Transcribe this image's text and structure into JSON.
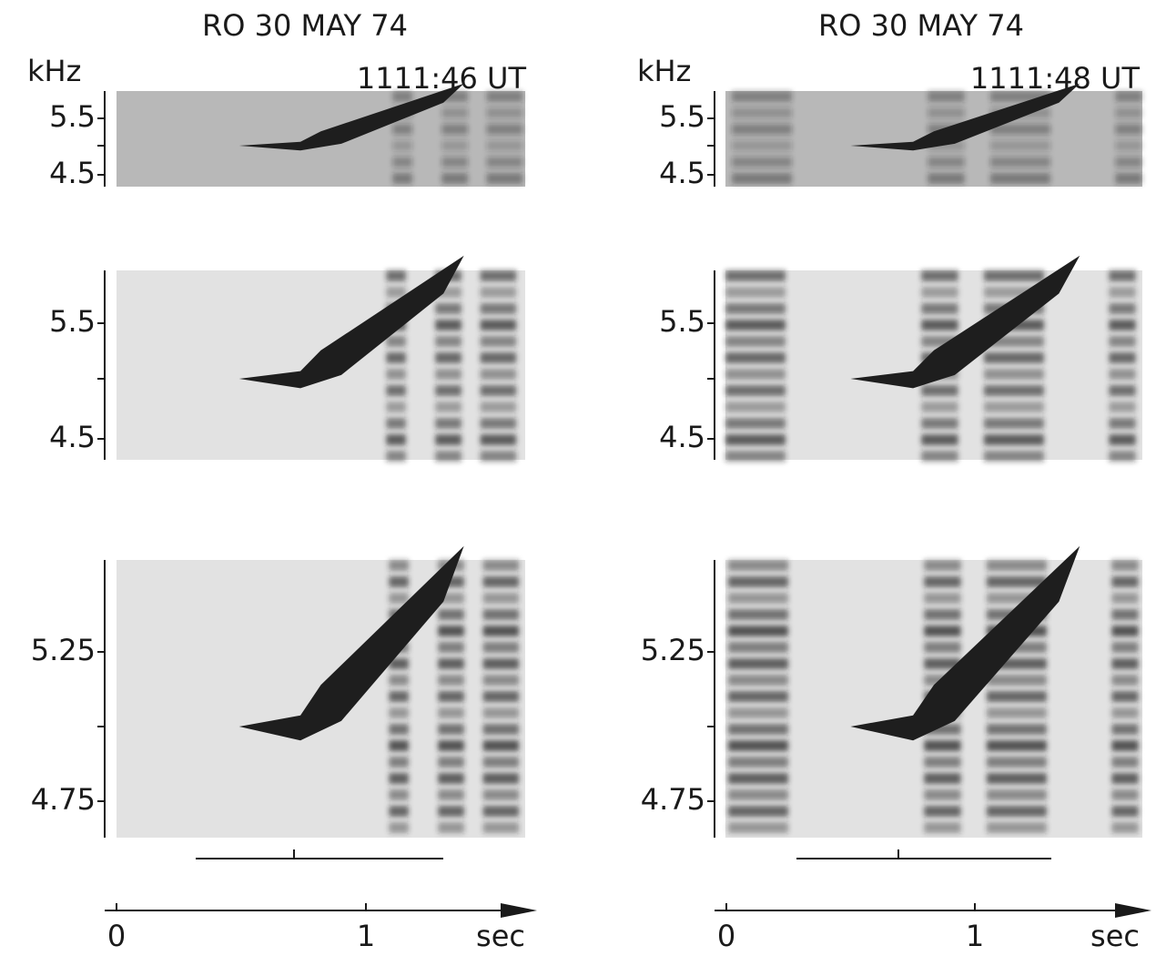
{
  "columns": [
    {
      "title": "RO 30 MAY 74",
      "time": "1111:46 UT",
      "unit": "kHz",
      "panels": [
        {
          "ticks": [
            "5.5",
            "4.5"
          ]
        },
        {
          "ticks": [
            "5.5",
            "4.5"
          ]
        },
        {
          "ticks": [
            "5.25",
            "4.75"
          ]
        }
      ],
      "x_axis": {
        "labels": [
          "0",
          "1"
        ],
        "unit": "sec"
      }
    },
    {
      "title": "RO 30 MAY 74",
      "time": "1111:48 UT",
      "unit": "kHz",
      "panels": [
        {
          "ticks": [
            "5.5",
            "4.5"
          ]
        },
        {
          "ticks": [
            "5.5",
            "4.5"
          ]
        },
        {
          "ticks": [
            "5.25",
            "4.75"
          ]
        }
      ],
      "x_axis": {
        "labels": [
          "0",
          "1"
        ],
        "unit": "sec"
      }
    }
  ]
}
